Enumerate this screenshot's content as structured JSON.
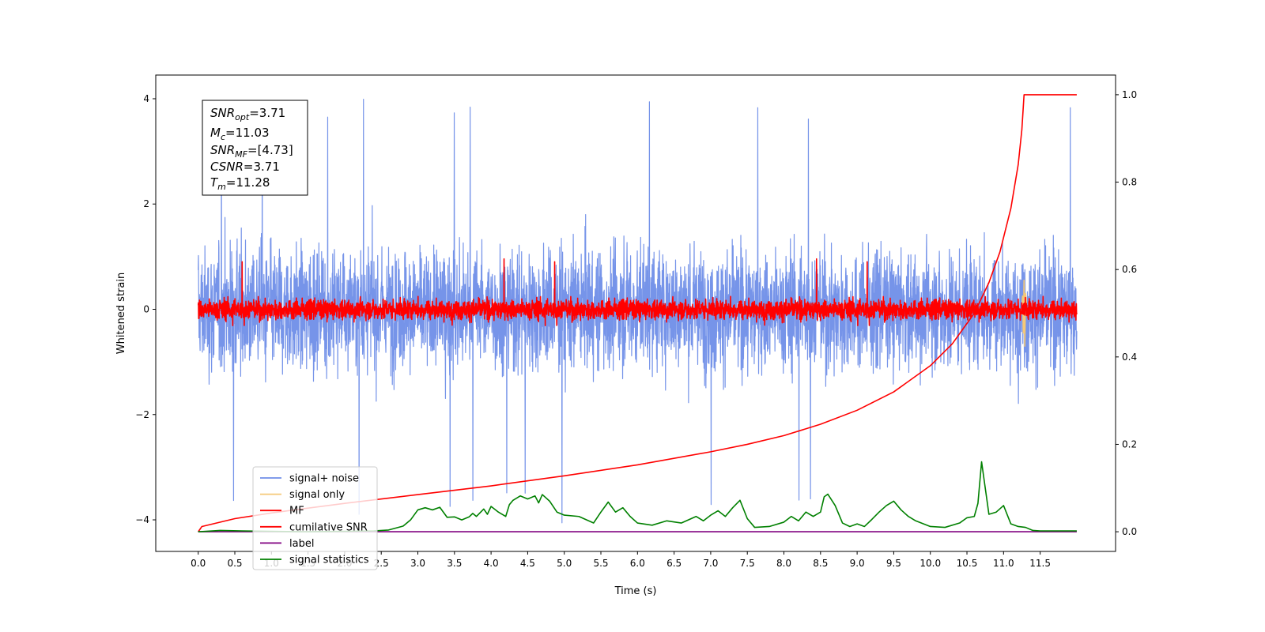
{
  "chart_data": {
    "type": "line",
    "xlabel": "Time (s)",
    "ylabel": "Whitened strain",
    "xlim": [
      -0.58,
      12.53
    ],
    "ylim_left": [
      -4.6,
      4.45
    ],
    "ylim_right": [
      -0.045,
      1.045
    ],
    "x_ticks": [
      0.0,
      0.5,
      1.0,
      1.5,
      2.0,
      2.5,
      3.0,
      3.5,
      4.0,
      4.5,
      5.0,
      5.5,
      6.0,
      6.5,
      7.0,
      7.5,
      8.0,
      8.5,
      9.0,
      9.5,
      10.0,
      10.5,
      11.0,
      11.5
    ],
    "x_tick_labels": [
      "0.0",
      "0.5",
      "1.0",
      "1.5",
      "2.0",
      "2.5",
      "3.0",
      "3.5",
      "4.0",
      "4.5",
      "5.0",
      "5.5",
      "6.0",
      "6.5",
      "7.0",
      "7.5",
      "8.0",
      "8.5",
      "9.0",
      "9.5",
      "10.0",
      "10.5",
      "11.0",
      "11.5"
    ],
    "y_left_ticks": [
      -4,
      -2,
      0,
      2,
      4
    ],
    "y_left_tick_labels": [
      "−4",
      "−2",
      "0",
      "2",
      "4"
    ],
    "y_right_ticks": [
      0.0,
      0.2,
      0.4,
      0.6,
      0.8,
      1.0
    ],
    "y_right_tick_labels": [
      "0.0",
      "0.2",
      "0.4",
      "0.6",
      "0.8",
      "1.0"
    ],
    "grid": false,
    "legend_position": "lower-left",
    "legend": [
      {
        "label": "signal+ noise",
        "color": "#6f8ee8"
      },
      {
        "label": "signal only",
        "color": "#f5c978"
      },
      {
        "label": "MF",
        "color": "#ff0000"
      },
      {
        "label": "cumilative SNR",
        "color": "#ff0000"
      },
      {
        "label": "label",
        "color": "#800080"
      },
      {
        "label": "signal statistics",
        "color": "#008000"
      }
    ],
    "info_box": {
      "snr_opt": {
        "base": "SNR",
        "sub": "opt",
        "value": "=3.71"
      },
      "mc": {
        "base": "M",
        "sub": "c",
        "value": "=11.03"
      },
      "snr_mf": {
        "base": "SNR",
        "sub": "MF",
        "value": "=[4.73]"
      },
      "csnr": {
        "base": "CSNR",
        "value": "=3.71"
      },
      "tm": {
        "base": "T",
        "sub": "m",
        "value": "=11.28"
      }
    },
    "series": [
      {
        "name": "signal+ noise",
        "axis": "left",
        "kind": "noise",
        "x_range": [
          0.0,
          12.0
        ],
        "amplitude": 0.95,
        "peak_max": 4.0,
        "peak_min": -4.1
      },
      {
        "name": "signal only",
        "axis": "left",
        "x": [
          11.2,
          11.24,
          11.26,
          11.27,
          11.28,
          11.29,
          11.3,
          11.32
        ],
        "y": [
          0.05,
          -0.1,
          0.25,
          -0.45,
          0.55,
          -0.7,
          0.3,
          0.0
        ]
      },
      {
        "name": "MF",
        "axis": "left",
        "kind": "noise",
        "x_range": [
          0.0,
          12.0
        ],
        "amplitude": 0.16,
        "peak_max": 1.0,
        "peak_min": -0.35
      },
      {
        "name": "cumilative SNR",
        "axis": "right",
        "x": [
          0.0,
          0.05,
          0.5,
          1.0,
          2.0,
          3.0,
          4.0,
          5.0,
          6.0,
          7.0,
          7.5,
          8.0,
          8.5,
          9.0,
          9.5,
          10.0,
          10.3,
          10.6,
          10.8,
          10.95,
          11.1,
          11.2,
          11.25,
          11.28,
          12.0
        ],
        "y": [
          0.0,
          0.012,
          0.03,
          0.043,
          0.065,
          0.085,
          0.105,
          0.128,
          0.153,
          0.183,
          0.2,
          0.22,
          0.246,
          0.278,
          0.32,
          0.38,
          0.43,
          0.5,
          0.57,
          0.64,
          0.74,
          0.84,
          0.92,
          1.0,
          1.0
        ]
      },
      {
        "name": "label",
        "axis": "right",
        "x": [
          0.0,
          12.0
        ],
        "y": [
          0.0,
          0.0
        ]
      },
      {
        "name": "signal statistics",
        "axis": "right",
        "x": [
          0.0,
          0.3,
          0.6,
          1.0,
          1.5,
          2.0,
          2.4,
          2.6,
          2.8,
          2.9,
          3.0,
          3.1,
          3.2,
          3.3,
          3.4,
          3.5,
          3.6,
          3.7,
          3.75,
          3.8,
          3.9,
          3.95,
          4.0,
          4.1,
          4.2,
          4.25,
          4.3,
          4.4,
          4.5,
          4.6,
          4.65,
          4.7,
          4.8,
          4.9,
          5.0,
          5.2,
          5.4,
          5.5,
          5.6,
          5.7,
          5.8,
          5.9,
          6.0,
          6.2,
          6.4,
          6.6,
          6.8,
          6.9,
          7.0,
          7.1,
          7.2,
          7.3,
          7.4,
          7.5,
          7.6,
          7.8,
          8.0,
          8.1,
          8.2,
          8.3,
          8.4,
          8.5,
          8.55,
          8.6,
          8.7,
          8.75,
          8.8,
          8.9,
          9.0,
          9.1,
          9.2,
          9.3,
          9.4,
          9.5,
          9.6,
          9.7,
          9.8,
          10.0,
          10.2,
          10.4,
          10.5,
          10.6,
          10.65,
          10.7,
          10.8,
          10.9,
          11.0,
          11.1,
          11.2,
          11.3,
          11.4,
          11.5,
          11.6,
          12.0
        ],
        "y": [
          0.0,
          0.003,
          0.002,
          0.001,
          0.0,
          0.001,
          0.002,
          0.004,
          0.013,
          0.027,
          0.05,
          0.055,
          0.05,
          0.056,
          0.033,
          0.034,
          0.027,
          0.034,
          0.042,
          0.035,
          0.052,
          0.04,
          0.058,
          0.045,
          0.035,
          0.062,
          0.072,
          0.082,
          0.075,
          0.082,
          0.066,
          0.085,
          0.07,
          0.045,
          0.038,
          0.035,
          0.02,
          0.045,
          0.068,
          0.045,
          0.055,
          0.035,
          0.02,
          0.015,
          0.025,
          0.02,
          0.035,
          0.025,
          0.038,
          0.048,
          0.035,
          0.055,
          0.072,
          0.03,
          0.01,
          0.012,
          0.022,
          0.035,
          0.025,
          0.045,
          0.035,
          0.045,
          0.08,
          0.086,
          0.06,
          0.04,
          0.02,
          0.012,
          0.018,
          0.012,
          0.028,
          0.045,
          0.06,
          0.07,
          0.05,
          0.035,
          0.025,
          0.012,
          0.01,
          0.02,
          0.032,
          0.035,
          0.065,
          0.16,
          0.04,
          0.045,
          0.06,
          0.018,
          0.012,
          0.01,
          0.003,
          0.002,
          0.002,
          0.002
        ]
      }
    ]
  }
}
